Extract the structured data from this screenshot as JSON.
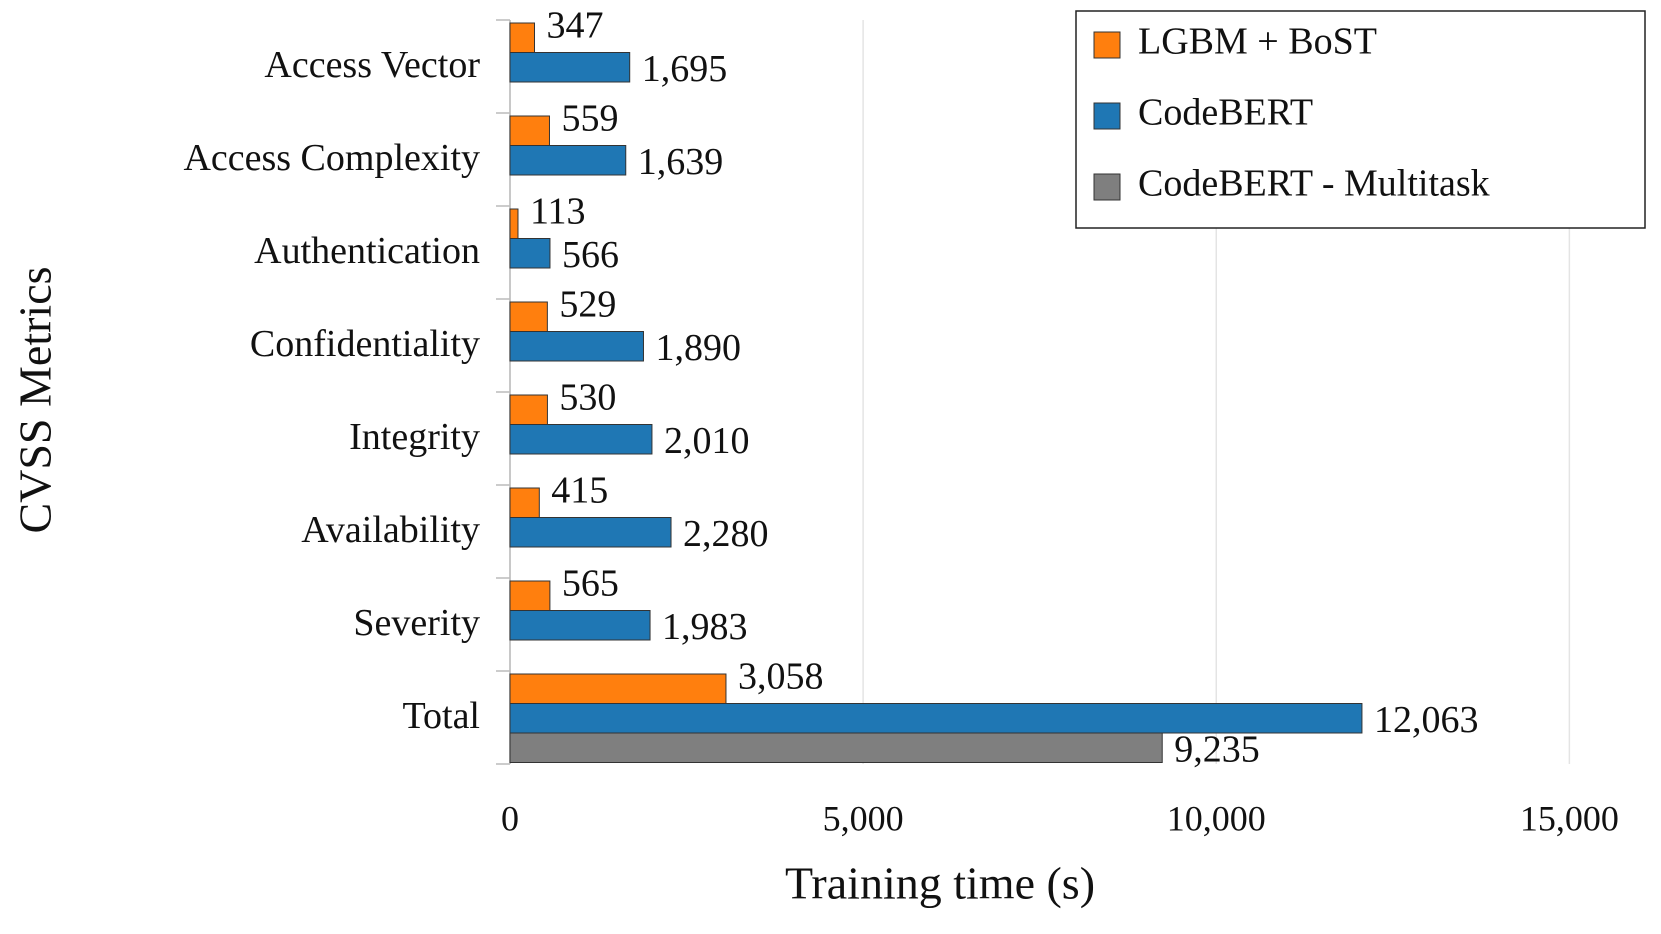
{
  "chart_data": {
    "type": "bar",
    "orientation": "horizontal",
    "xlabel": "Training time (s)",
    "ylabel": "CVSS Metrics",
    "categories": [
      "Access Vector",
      "Access Complexity",
      "Authentication",
      "Confidentiality",
      "Integrity",
      "Availability",
      "Severity",
      "Total"
    ],
    "series": [
      {
        "name": "LGBM + BoST",
        "color": "#ff7f0e",
        "values": [
          347,
          559,
          113,
          529,
          530,
          415,
          565,
          3058
        ],
        "value_labels": [
          "347",
          "559",
          "113",
          "529",
          "530",
          "415",
          "565",
          "3,058"
        ]
      },
      {
        "name": "CodeBERT",
        "color": "#1f77b4",
        "values": [
          1695,
          1639,
          566,
          1890,
          2010,
          2280,
          1983,
          12063
        ],
        "value_labels": [
          "1,695",
          "1,639",
          "566",
          "1,890",
          "2,010",
          "2,280",
          "1,983",
          "12,063"
        ]
      },
      {
        "name": "CodeBERT - Multitask",
        "color": "#7f7f7f",
        "values": [
          null,
          null,
          null,
          null,
          null,
          null,
          null,
          9235
        ],
        "value_labels": [
          null,
          null,
          null,
          null,
          null,
          null,
          null,
          "9,235"
        ]
      }
    ],
    "xlim": [
      0,
      16000
    ],
    "xticks": [
      0,
      {
        "value": 5000,
        "label": "5,000"
      },
      {
        "value": 10000,
        "label": "10,000"
      },
      {
        "value": 15000,
        "label": "15,000"
      }
    ],
    "grid": true,
    "legend": "upper right"
  }
}
